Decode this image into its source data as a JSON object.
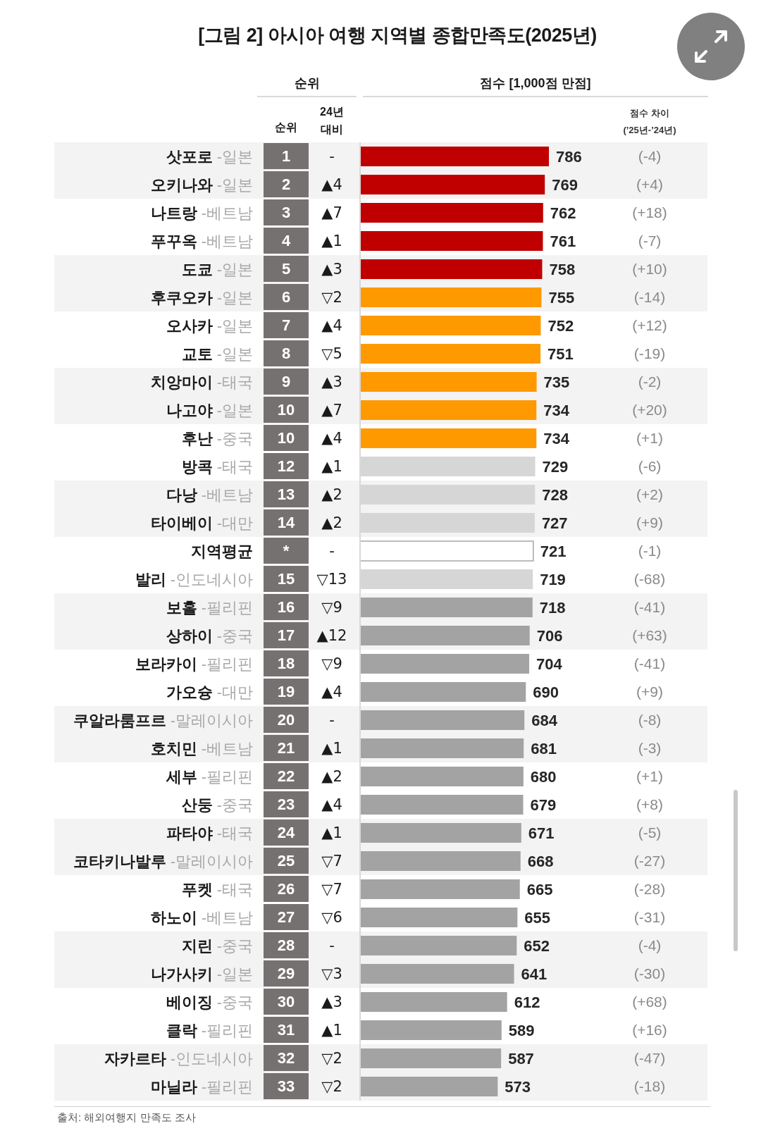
{
  "chart_data": {
    "type": "bar",
    "orientation": "horizontal",
    "title": "[그림 2] 아시아 여행 지역별 종합만족도(2025년)",
    "xlabel": "점수 [1,000점 만점]",
    "categories": [
      "삿포로 -일본",
      "오키나와 -일본",
      "나트랑 -베트남",
      "푸꾸옥 -베트남",
      "도쿄 -일본",
      "후쿠오카 -일본",
      "오사카 -일본",
      "교토 -일본",
      "치앙마이 -태국",
      "나고야 -일본",
      "후난 -중국",
      "방콕 -태국",
      "다낭 -베트남",
      "타이베이 -대만",
      "지역평균",
      "발리 -인도네시아",
      "보홀 -필리핀",
      "상하이 -중국",
      "보라카이 -필리핀",
      "가오슝 -대만",
      "쿠알라룸프르 -말레이시아",
      "호치민 -베트남",
      "세부 -필리핀",
      "산둥 -중국",
      "파타야 -태국",
      "코타키나발루 -말레이시아",
      "푸켓 -태국",
      "하노이 -베트남",
      "지린 -중국",
      "나가사키 -일본",
      "베이징 -중국",
      "클락 -필리핀",
      "자카르타 -인도네시아",
      "마닐라 -필리핀"
    ],
    "values": [
      786,
      769,
      762,
      761,
      758,
      755,
      752,
      751,
      735,
      734,
      734,
      729,
      728,
      727,
      721,
      719,
      718,
      706,
      704,
      690,
      684,
      681,
      680,
      679,
      671,
      668,
      665,
      655,
      652,
      641,
      612,
      589,
      587,
      573
    ],
    "colors": [
      "#c00000",
      "#c00000",
      "#c00000",
      "#c00000",
      "#c00000",
      "#ff9900",
      "#ff9900",
      "#ff9900",
      "#ff9900",
      "#ff9900",
      "#ff9900",
      "#d6d6d6",
      "#d6d6d6",
      "#d6d6d6",
      "#ffffff",
      "#d6d6d6",
      "#a3a3a3",
      "#a3a3a3",
      "#a3a3a3",
      "#a3a3a3",
      "#a3a3a3",
      "#a3a3a3",
      "#a3a3a3",
      "#a3a3a3",
      "#a3a3a3",
      "#a3a3a3",
      "#a3a3a3",
      "#a3a3a3",
      "#a3a3a3",
      "#a3a3a3",
      "#a3a3a3",
      "#a3a3a3",
      "#a3a3a3",
      "#a3a3a3"
    ],
    "tick_labels": "y",
    "data_labels": true,
    "annotations": [
      "순위",
      "순위",
      "24년 대비",
      "점수 차이 (’25년-’24년)",
      "1",
      "-",
      "(-4)",
      "2",
      "▲4",
      "(+4)",
      "3",
      "▲7",
      "(+18)",
      "4",
      "▲1",
      "(-7)",
      "5",
      "▲3",
      "(+10)",
      "6",
      "▽2",
      "(-14)",
      "7",
      "▲4",
      "(+12)",
      "8",
      "▽5",
      "(-19)",
      "9",
      "▲3",
      "(-2)",
      "10",
      "▲7",
      "(+20)",
      "10",
      "▲4",
      "(+1)",
      "12",
      "▲1",
      "(-6)",
      "13",
      "▲2",
      "(+2)",
      "14",
      "▲2",
      "(+9)",
      "*",
      "-",
      "(-1)",
      "15",
      "▽13",
      "(-68)",
      "16",
      "▽9",
      "(-41)",
      "17",
      "▲12",
      "(+63)",
      "18",
      "▽9",
      "(-41)",
      "19",
      "▲4",
      "(+9)",
      "20",
      "-",
      "(-8)",
      "21",
      "▲1",
      "(-3)",
      "22",
      "▲2",
      "(+1)",
      "23",
      "▲4",
      "(+8)",
      "24",
      "▲1",
      "(-5)",
      "25",
      "▽7",
      "(-27)",
      "26",
      "▽7",
      "(-28)",
      "27",
      "▽6",
      "(-31)",
      "28",
      "-",
      "(-4)",
      "29",
      "▽3",
      "(-30)",
      "30",
      "▲3",
      "(+68)",
      "31",
      "▲1",
      "(+16)",
      "32",
      "▽2",
      "(-47)",
      "33",
      "▽2",
      "(-18)",
      "출처: 해외여행지 만족도 조사"
    ]
  }
}
